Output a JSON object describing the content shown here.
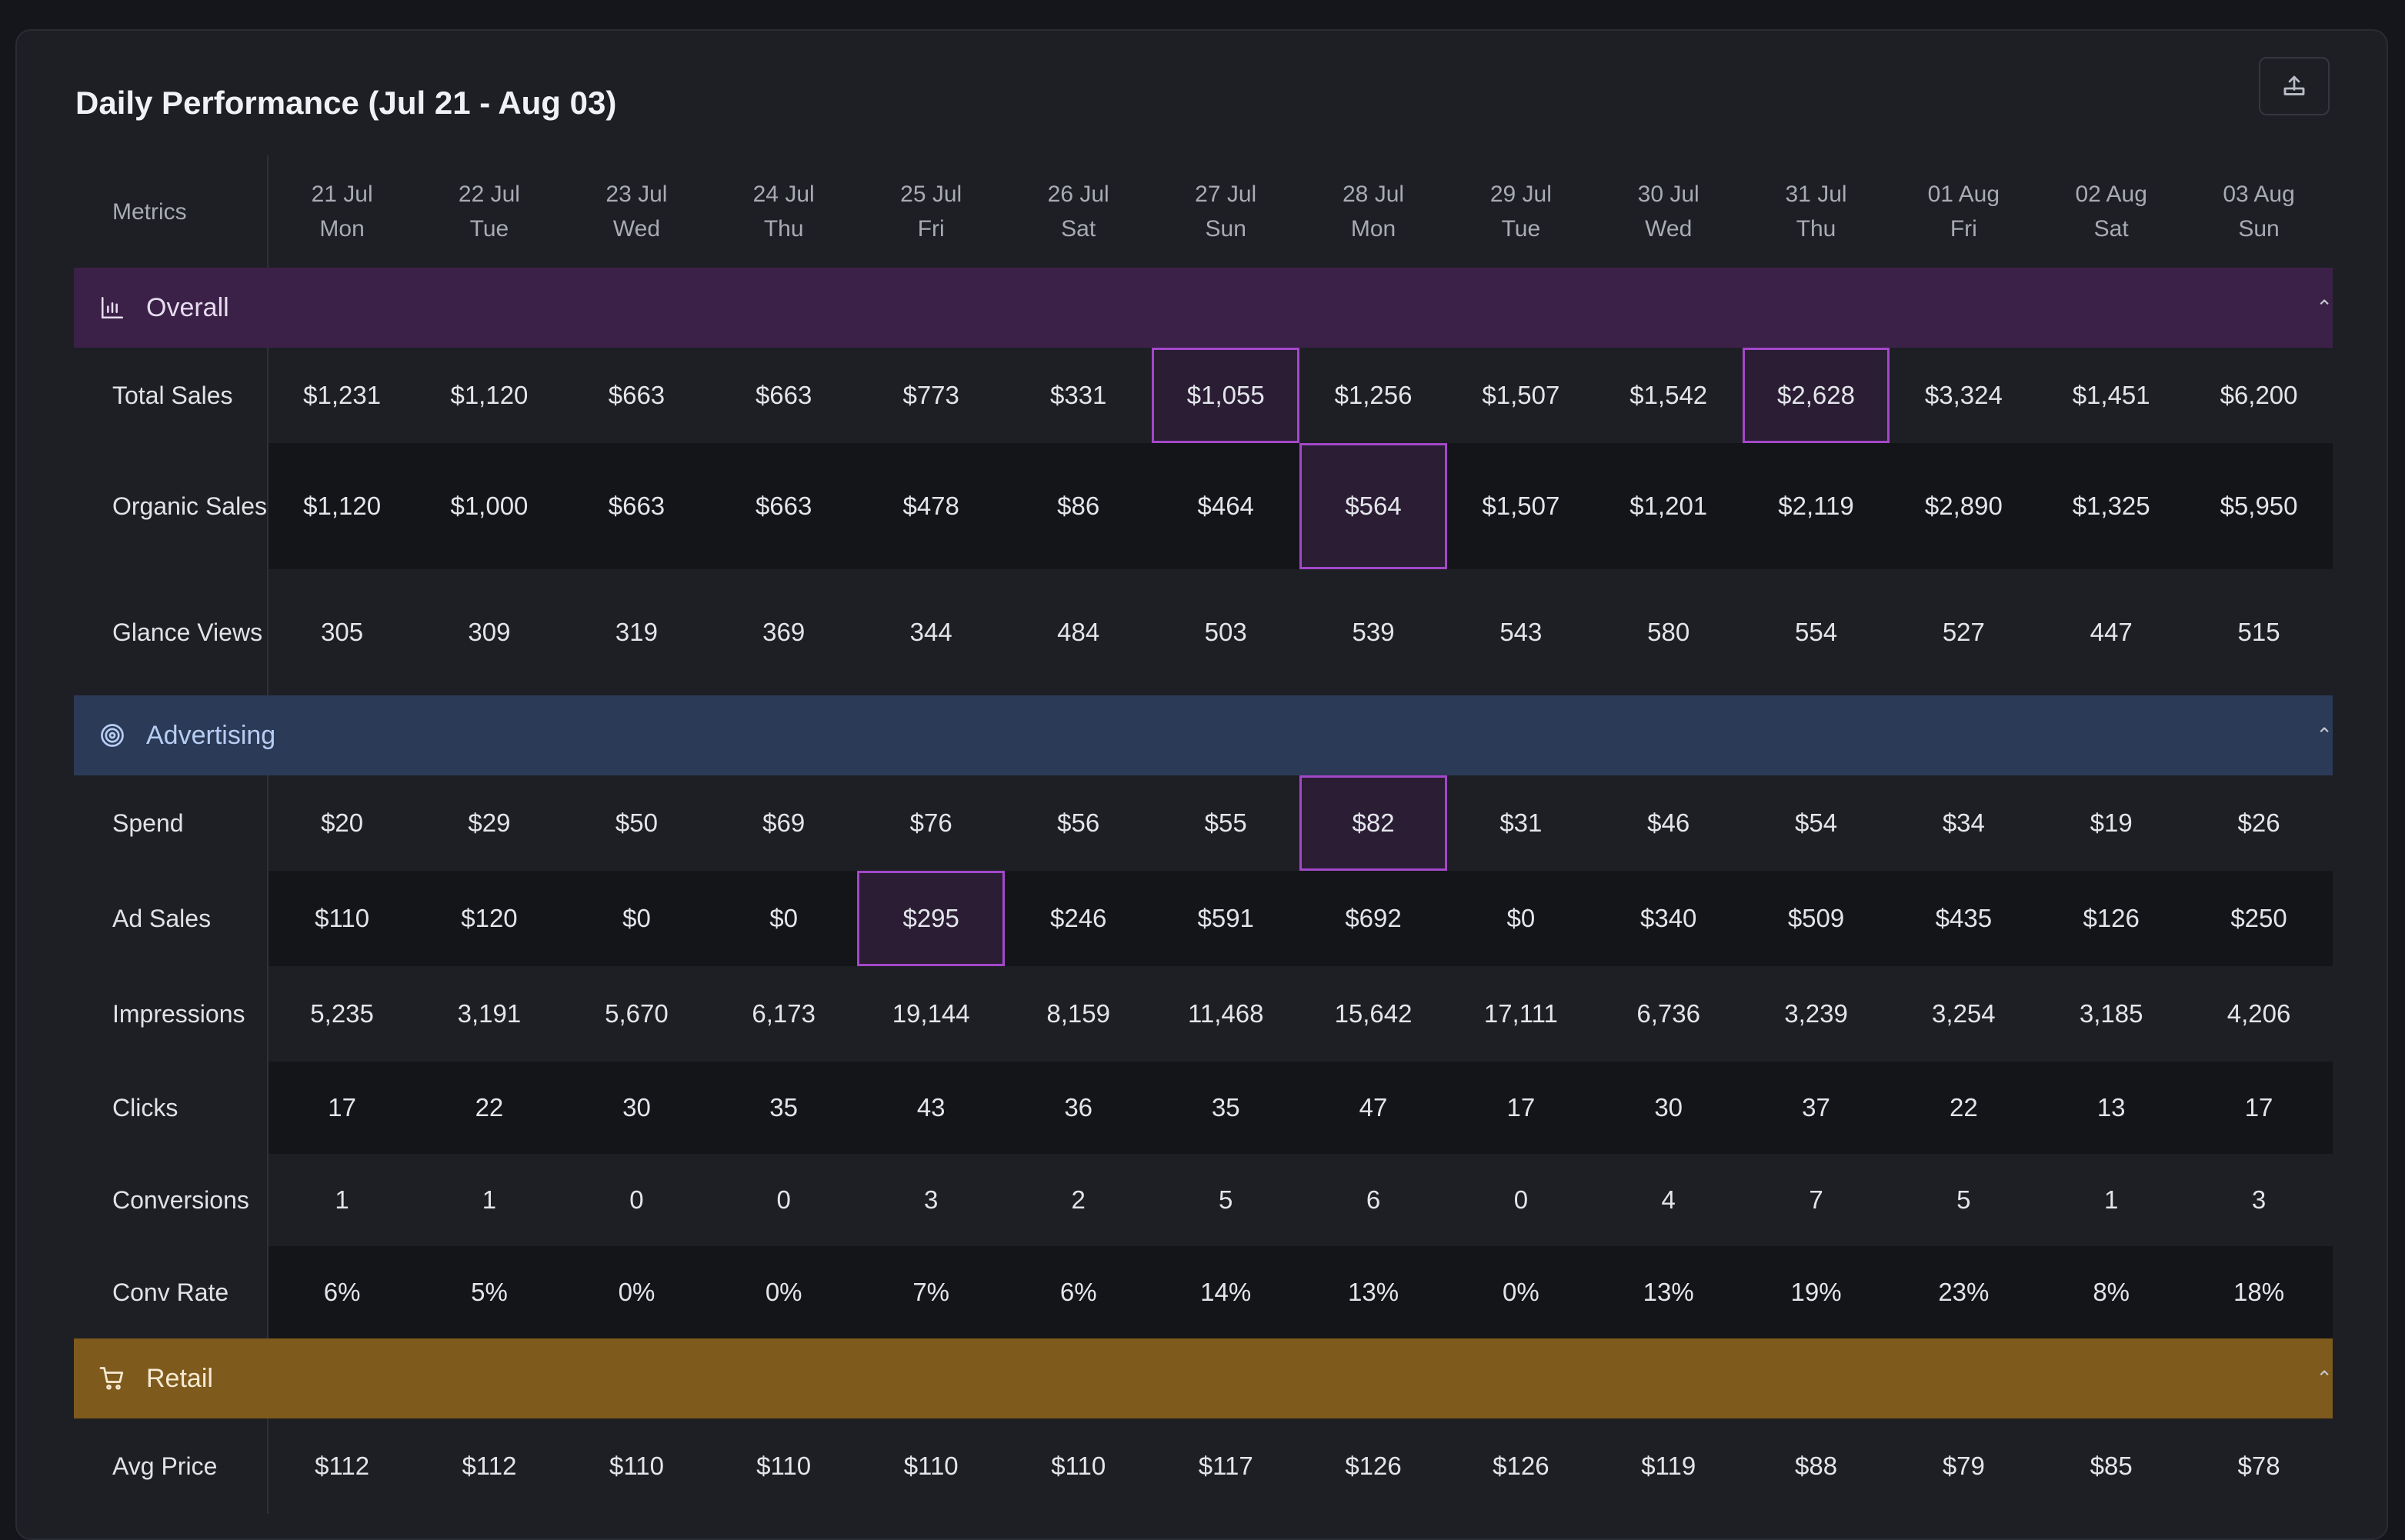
{
  "title": "Daily Performance (Jul 21 - Aug 03)",
  "export_icon": "export-icon",
  "header": {
    "metrics_label": "Metrics",
    "days": [
      {
        "date": "21 Jul",
        "weekday": "Mon"
      },
      {
        "date": "22 Jul",
        "weekday": "Tue"
      },
      {
        "date": "23 Jul",
        "weekday": "Wed"
      },
      {
        "date": "24 Jul",
        "weekday": "Thu"
      },
      {
        "date": "25 Jul",
        "weekday": "Fri"
      },
      {
        "date": "26 Jul",
        "weekday": "Sat"
      },
      {
        "date": "27 Jul",
        "weekday": "Sun"
      },
      {
        "date": "28 Jul",
        "weekday": "Mon"
      },
      {
        "date": "29 Jul",
        "weekday": "Tue"
      },
      {
        "date": "30 Jul",
        "weekday": "Wed"
      },
      {
        "date": "31 Jul",
        "weekday": "Thu"
      },
      {
        "date": "01 Aug",
        "weekday": "Fri"
      },
      {
        "date": "02 Aug",
        "weekday": "Sat"
      },
      {
        "date": "03 Aug",
        "weekday": "Sun"
      }
    ]
  },
  "sections": [
    {
      "name": "Overall",
      "icon": "bar-chart-icon",
      "style": "sec-overall",
      "color": "#3b2148",
      "rows": [
        {
          "label": "Total Sales",
          "height": "h1",
          "highlight": [
            6,
            10
          ],
          "values": [
            "$1,231",
            "$1,120",
            "$663",
            "$663",
            "$773",
            "$331",
            "$1,055",
            "$1,256",
            "$1,507",
            "$1,542",
            "$2,628",
            "$3,324",
            "$1,451",
            "$6,200"
          ]
        },
        {
          "label": "Organic Sales",
          "height": "h2",
          "highlight": [
            7
          ],
          "values": [
            "$1,120",
            "$1,000",
            "$663",
            "$663",
            "$478",
            "$86",
            "$464",
            "$564",
            "$1,507",
            "$1,201",
            "$2,119",
            "$2,890",
            "$1,325",
            "$5,950"
          ]
        },
        {
          "label": "Glance Views",
          "height": "h2",
          "highlight": [],
          "values": [
            "305",
            "309",
            "319",
            "369",
            "344",
            "484",
            "503",
            "539",
            "543",
            "580",
            "554",
            "527",
            "447",
            "515"
          ]
        }
      ]
    },
    {
      "name": "Advertising",
      "icon": "target-icon",
      "style": "sec-adv",
      "color": "#2b3a57",
      "rows": [
        {
          "label": "Spend",
          "height": "h1",
          "highlight": [
            7
          ],
          "values": [
            "$20",
            "$29",
            "$50",
            "$69",
            "$76",
            "$56",
            "$55",
            "$82",
            "$31",
            "$46",
            "$54",
            "$34",
            "$19",
            "$26"
          ]
        },
        {
          "label": "Ad Sales",
          "height": "h1",
          "highlight": [
            4
          ],
          "values": [
            "$110",
            "$120",
            "$0",
            "$0",
            "$295",
            "$246",
            "$591",
            "$692",
            "$0",
            "$340",
            "$509",
            "$435",
            "$126",
            "$250"
          ]
        },
        {
          "label": "Impressions",
          "height": "h1",
          "highlight": [],
          "values": [
            "5,235",
            "3,191",
            "5,670",
            "6,173",
            "19,144",
            "8,159",
            "11,468",
            "15,642",
            "17,111",
            "6,736",
            "3,239",
            "3,254",
            "3,185",
            "4,206"
          ]
        },
        {
          "label": "Clicks",
          "height": "h3",
          "highlight": [],
          "values": [
            "17",
            "22",
            "30",
            "35",
            "43",
            "36",
            "35",
            "47",
            "17",
            "30",
            "37",
            "22",
            "13",
            "17"
          ]
        },
        {
          "label": "Conversions",
          "height": "h3",
          "highlight": [],
          "values": [
            "1",
            "1",
            "0",
            "0",
            "3",
            "2",
            "5",
            "6",
            "0",
            "4",
            "7",
            "5",
            "1",
            "3"
          ]
        },
        {
          "label": "Conv Rate",
          "height": "h3",
          "highlight": [],
          "values": [
            "6%",
            "5%",
            "0%",
            "0%",
            "7%",
            "6%",
            "14%",
            "13%",
            "0%",
            "13%",
            "19%",
            "23%",
            "8%",
            "18%"
          ]
        }
      ]
    },
    {
      "name": "Retail",
      "icon": "cart-icon",
      "style": "sec-retail",
      "color": "#7e5a1d",
      "rows": [
        {
          "label": "Avg Price",
          "height": "h1",
          "highlight": [],
          "values": [
            "$112",
            "$112",
            "$110",
            "$110",
            "$110",
            "$110",
            "$117",
            "$126",
            "$126",
            "$119",
            "$88",
            "$79",
            "$85",
            "$78"
          ]
        }
      ]
    }
  ],
  "highlight_color": "#a347c9"
}
